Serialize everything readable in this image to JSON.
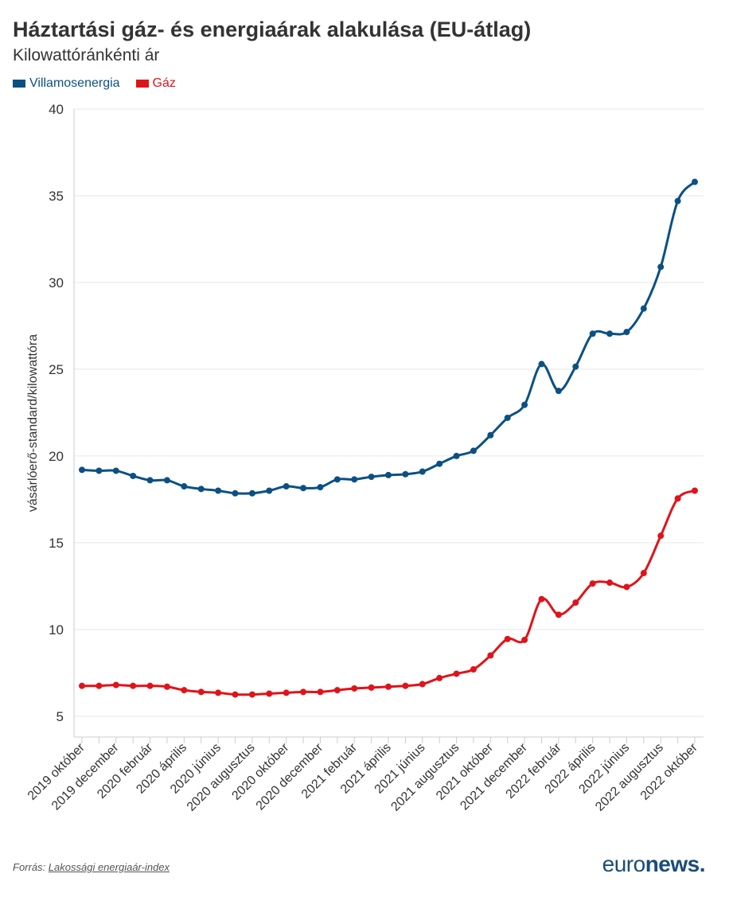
{
  "title": "Háztartási gáz- és energiaárak alakulása (EU-átlag)",
  "subtitle": "Kilowattóránkénti ár",
  "footer": {
    "source_prefix": "Forrás:",
    "source_link": "Lakossági energiaár-index"
  },
  "brand": {
    "part1": "euro",
    "part2": "news",
    "dot": "."
  },
  "chart_data": {
    "type": "line",
    "ylabel": "vásárlóerő-standard/kilowattóra",
    "ylim": [
      3.8,
      40
    ],
    "yticks": [
      5,
      10,
      15,
      20,
      25,
      30,
      35,
      40
    ],
    "grid": true,
    "legend_position": "top-left",
    "x_tick_labels": [
      "2019 október",
      "2019 december",
      "2020 február",
      "2020 április",
      "2020 június",
      "2020 augusztus",
      "2020 október",
      "2020 december",
      "2021 február",
      "2021 április",
      "2021 június",
      "2021 augusztus",
      "2021 október",
      "2021 december",
      "2022 február",
      "2022 április",
      "2022 június",
      "2022 augusztus",
      "2022 október"
    ],
    "series": [
      {
        "name": "Villamosenergia",
        "color": "#0b5083",
        "values": [
          19.2,
          19.15,
          19.15,
          18.85,
          18.6,
          18.6,
          18.25,
          18.1,
          18.0,
          17.85,
          17.85,
          18.0,
          18.25,
          18.15,
          18.2,
          18.65,
          18.65,
          18.8,
          18.9,
          18.95,
          19.1,
          19.55,
          20.0,
          20.3,
          21.2,
          22.2,
          22.95,
          25.3,
          23.75,
          25.15,
          27.05,
          27.05,
          27.15,
          28.5,
          30.9,
          34.7,
          35.8
        ]
      },
      {
        "name": "Gáz",
        "color": "#e0131a",
        "values": [
          6.75,
          6.75,
          6.8,
          6.75,
          6.75,
          6.7,
          6.5,
          6.4,
          6.35,
          6.25,
          6.25,
          6.3,
          6.35,
          6.4,
          6.4,
          6.5,
          6.6,
          6.65,
          6.7,
          6.75,
          6.85,
          7.2,
          7.45,
          7.7,
          8.5,
          9.45,
          9.4,
          11.75,
          10.85,
          11.55,
          12.65,
          12.7,
          12.45,
          13.25,
          15.4,
          17.55,
          18.0
        ]
      }
    ]
  }
}
